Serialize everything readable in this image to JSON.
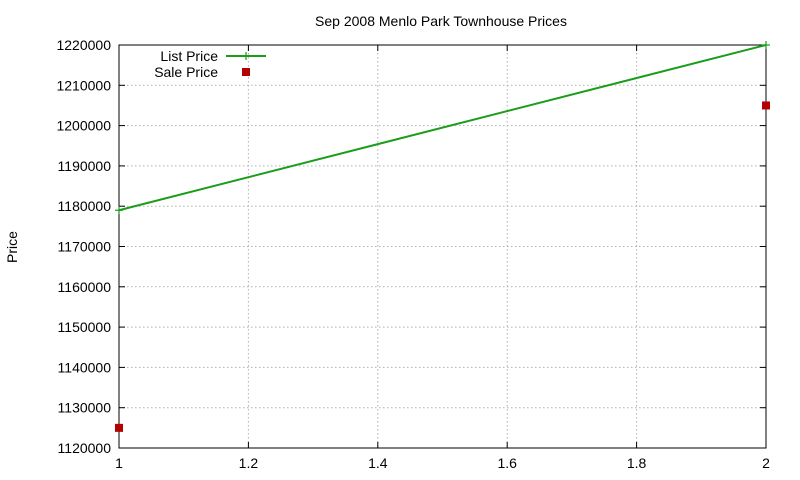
{
  "chart_data": {
    "type": "scatter",
    "title": "Sep 2008 Menlo Park Townhouse Prices",
    "xlabel": "",
    "ylabel": "Price",
    "xlim": [
      1,
      2
    ],
    "ylim": [
      1120000,
      1220000
    ],
    "x_ticks": [
      "1",
      "1.2",
      "1.4",
      "1.6",
      "1.8",
      "2"
    ],
    "x_tick_values": [
      1,
      1.2,
      1.4,
      1.6,
      1.8,
      2
    ],
    "y_ticks": [
      "1120000",
      "1130000",
      "1140000",
      "1150000",
      "1160000",
      "1170000",
      "1180000",
      "1190000",
      "1200000",
      "1210000",
      "1220000"
    ],
    "y_tick_values": [
      1120000,
      1130000,
      1140000,
      1150000,
      1160000,
      1170000,
      1180000,
      1190000,
      1200000,
      1210000,
      1220000
    ],
    "grid": true,
    "legend_position": "top-left",
    "series": [
      {
        "name": "List Price",
        "style": "line-with-points",
        "color": "#1a9e1a",
        "x": [
          1,
          2
        ],
        "y": [
          1179000,
          1220000
        ]
      },
      {
        "name": "Sale Price",
        "style": "points",
        "color": "#b30000",
        "x": [
          1,
          2
        ],
        "y": [
          1125000,
          1205000
        ]
      }
    ]
  }
}
